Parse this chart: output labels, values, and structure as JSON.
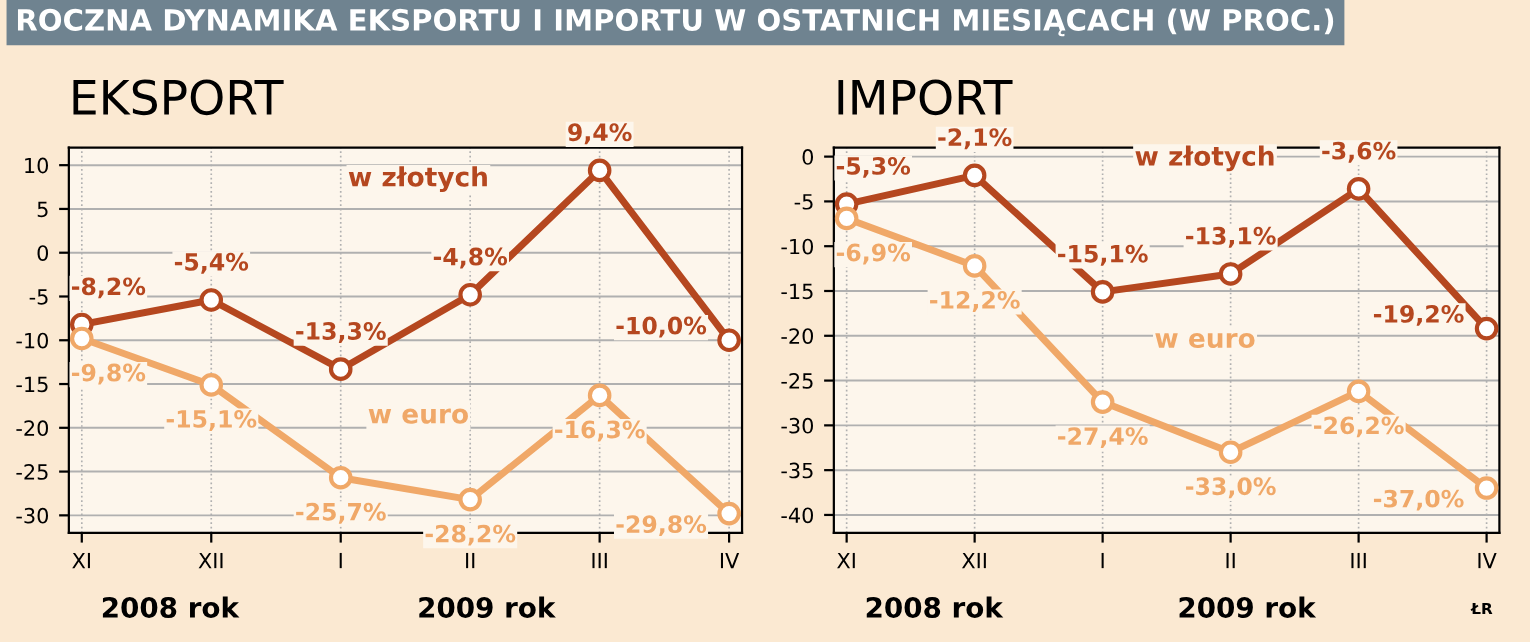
{
  "chart_data": [
    {
      "type": "line",
      "subtitle": "ROCZNA DYNAMIKA EKSPORTU I IMPORTU W OSTATNICH MIESIĄCACH (W PROC.)",
      "title": "EKSPORT",
      "categories": [
        "XI",
        "XII",
        "I",
        "II",
        "III",
        "IV"
      ],
      "series": [
        {
          "name": "w złotych",
          "color": "#b5471f",
          "values": [
            -8.2,
            -5.4,
            -13.3,
            -4.8,
            9.4,
            -10.0
          ],
          "value_labels": [
            "-8,2%",
            "-5,4%",
            "-13,3%",
            "-4,8%",
            "9,4%",
            "-10,0%"
          ]
        },
        {
          "name": "w euro",
          "color": "#f0a868",
          "values": [
            -9.8,
            -15.1,
            -25.7,
            -28.2,
            -16.3,
            -29.8
          ],
          "value_labels": [
            "-9,8%",
            "-15,1%",
            "-25,7%",
            "-28,2%",
            "-16,3%",
            "-29,8%"
          ]
        }
      ],
      "ylim": [
        -32,
        12
      ],
      "yticks": [
        10,
        5,
        0,
        -5,
        -10,
        -15,
        -20,
        -25,
        -30
      ],
      "grid": true,
      "marker": "circle",
      "annotations": [
        "2008 rok",
        "2009 rok"
      ]
    },
    {
      "type": "line",
      "title": "IMPORT",
      "categories": [
        "XI",
        "XII",
        "I",
        "II",
        "III",
        "IV"
      ],
      "series": [
        {
          "name": "w złotych",
          "color": "#b5471f",
          "values": [
            -5.3,
            -2.1,
            -15.1,
            -13.1,
            -3.6,
            -19.2
          ],
          "value_labels": [
            "-5,3%",
            "-2,1%",
            "-15,1%",
            "-13,1%",
            "-3,6%",
            "-19,2%"
          ]
        },
        {
          "name": "w euro",
          "color": "#f0a868",
          "values": [
            -6.9,
            -12.2,
            -27.4,
            -33.0,
            -26.2,
            -37.0
          ],
          "value_labels": [
            "-6,9%",
            "-12,2%",
            "-27,4%",
            "-33,0%",
            "-26,2%",
            "-37,0%"
          ]
        }
      ],
      "ylim": [
        -42,
        1
      ],
      "yticks": [
        0,
        -5,
        -10,
        -15,
        -20,
        -25,
        -30,
        -35,
        -40
      ],
      "grid": true,
      "marker": "circle",
      "annotations": [
        "2008 rok",
        "2009 rok",
        "ŁR"
      ]
    }
  ]
}
